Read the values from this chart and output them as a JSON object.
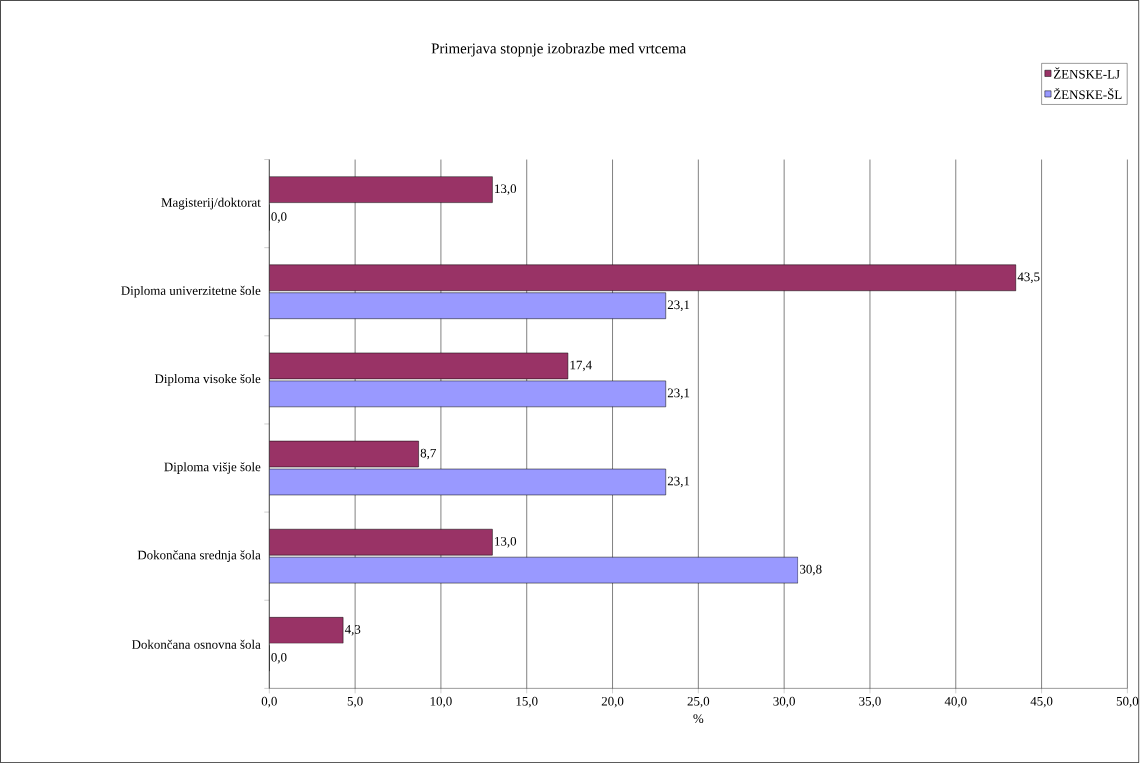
{
  "chart_data": {
    "type": "bar",
    "orientation": "horizontal",
    "title": "Primerjava stopnje izobrazbe med vrtcema",
    "xlabel": "%",
    "categories": [
      "Magisterij/doktorat",
      "Diploma univerzitetne šole",
      "Diploma visoke šole",
      "Diploma višje šole",
      "Dokončana srednja šola",
      "Dokončana osnovna šola"
    ],
    "series": [
      {
        "name": "ŽENSKE-LJ",
        "color": "#993366",
        "values": [
          13.0,
          43.5,
          17.4,
          8.7,
          13.0,
          4.3
        ],
        "value_labels": [
          "13,0",
          "43,5",
          "17,4",
          "8,7",
          "13,0",
          "4,3"
        ]
      },
      {
        "name": "ŽENSKE-ŠL",
        "color": "#9999ff",
        "values": [
          0.0,
          23.1,
          23.1,
          23.1,
          30.8,
          0.0
        ],
        "value_labels": [
          "0,0",
          "23,1",
          "23,1",
          "23,1",
          "30,8",
          "0,0"
        ]
      }
    ],
    "xlim": [
      0,
      50
    ],
    "xticks": [
      {
        "value": 0,
        "label": "0,0"
      },
      {
        "value": 5,
        "label": "5,0"
      },
      {
        "value": 10,
        "label": "10,0"
      },
      {
        "value": 15,
        "label": "15,0"
      },
      {
        "value": 20,
        "label": "20,0"
      },
      {
        "value": 25,
        "label": "25,0"
      },
      {
        "value": 30,
        "label": "30,0"
      },
      {
        "value": 35,
        "label": "35,0"
      },
      {
        "value": 40,
        "label": "40,0"
      },
      {
        "value": 45,
        "label": "45,0"
      },
      {
        "value": 50,
        "label": "50,0"
      }
    ],
    "grid": "x",
    "legend": "top right"
  }
}
